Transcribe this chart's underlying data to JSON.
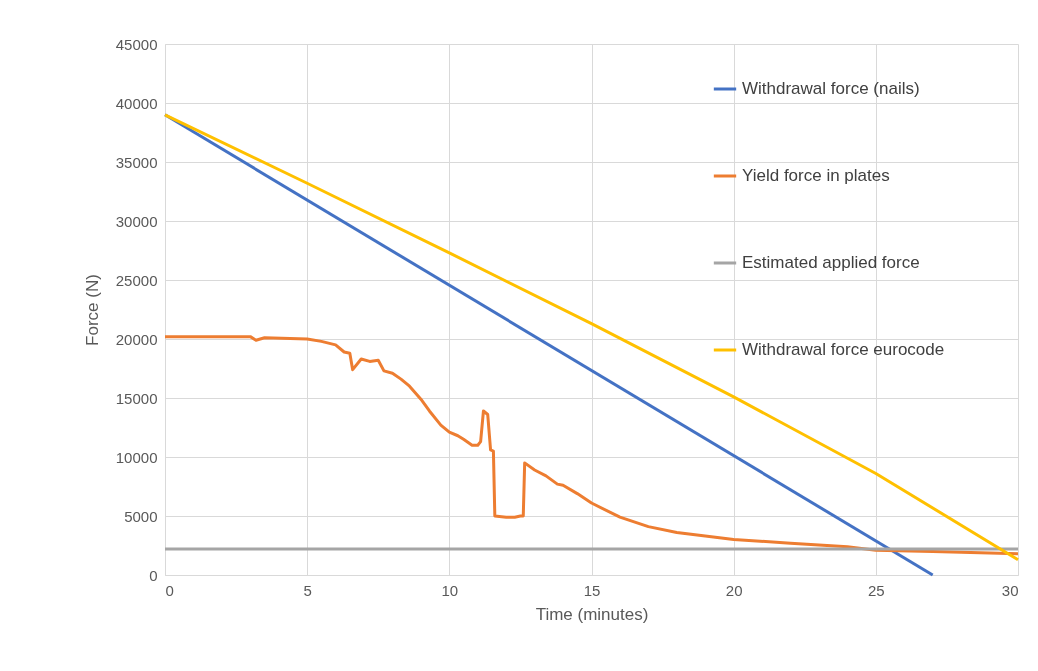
{
  "chart_data": {
    "type": "line",
    "xlabel": "Time (minutes)",
    "ylabel": "Force (N)",
    "xlim": [
      0,
      30
    ],
    "xticks": [
      0,
      5,
      10,
      15,
      20,
      25,
      30
    ],
    "ylim": [
      0,
      45000
    ],
    "yticks": [
      0,
      5000,
      10000,
      15000,
      20000,
      25000,
      30000,
      35000,
      40000,
      45000
    ],
    "grid": true,
    "legend": "top right",
    "marker": "none",
    "line_style": "solid",
    "series": [
      {
        "name": "Withdrawal force (nails)",
        "color": "#4472c4",
        "x": [
          0,
          27
        ],
        "values": [
          39000,
          0
        ]
      },
      {
        "name": "Yield force in plates",
        "color": "#ed7d31",
        "x": [
          0,
          3,
          3.2,
          3.5,
          5,
          5.5,
          6,
          6.3,
          6.5,
          6.6,
          6.9,
          7.2,
          7.5,
          7.7,
          8,
          8.3,
          8.6,
          9,
          9.3,
          9.7,
          10,
          10.3,
          10.5,
          10.8,
          11,
          11.1,
          11.2,
          11.35,
          11.45,
          11.55,
          11.6,
          12,
          12.3,
          12.5,
          12.6,
          12.65,
          13,
          13.4,
          13.8,
          14,
          14.5,
          15,
          16,
          17,
          18,
          19,
          20,
          22,
          24,
          25,
          27,
          30
        ],
        "values": [
          20200,
          20200,
          19900,
          20100,
          20000,
          19800,
          19500,
          18900,
          18800,
          17400,
          18300,
          18100,
          18200,
          17300,
          17100,
          16600,
          16000,
          14900,
          13900,
          12700,
          12100,
          11800,
          11500,
          11000,
          11000,
          11300,
          13900,
          13600,
          10600,
          10500,
          5000,
          4900,
          4900,
          5000,
          5000,
          9500,
          8900,
          8400,
          7700,
          7600,
          6900,
          6100,
          4900,
          4100,
          3600,
          3300,
          3000,
          2700,
          2400,
          2100,
          2000,
          1800
        ]
      },
      {
        "name": "Estimated applied force",
        "color": "#a5a5a5",
        "x": [
          0,
          30
        ],
        "values": [
          2200,
          2200
        ]
      },
      {
        "name": "Withdrawal force eurocode",
        "color": "#ffc000",
        "x": [
          0,
          5,
          10,
          15,
          20,
          25,
          30
        ],
        "values": [
          39000,
          33200,
          27300,
          21300,
          15100,
          8600,
          1300
        ]
      }
    ]
  }
}
